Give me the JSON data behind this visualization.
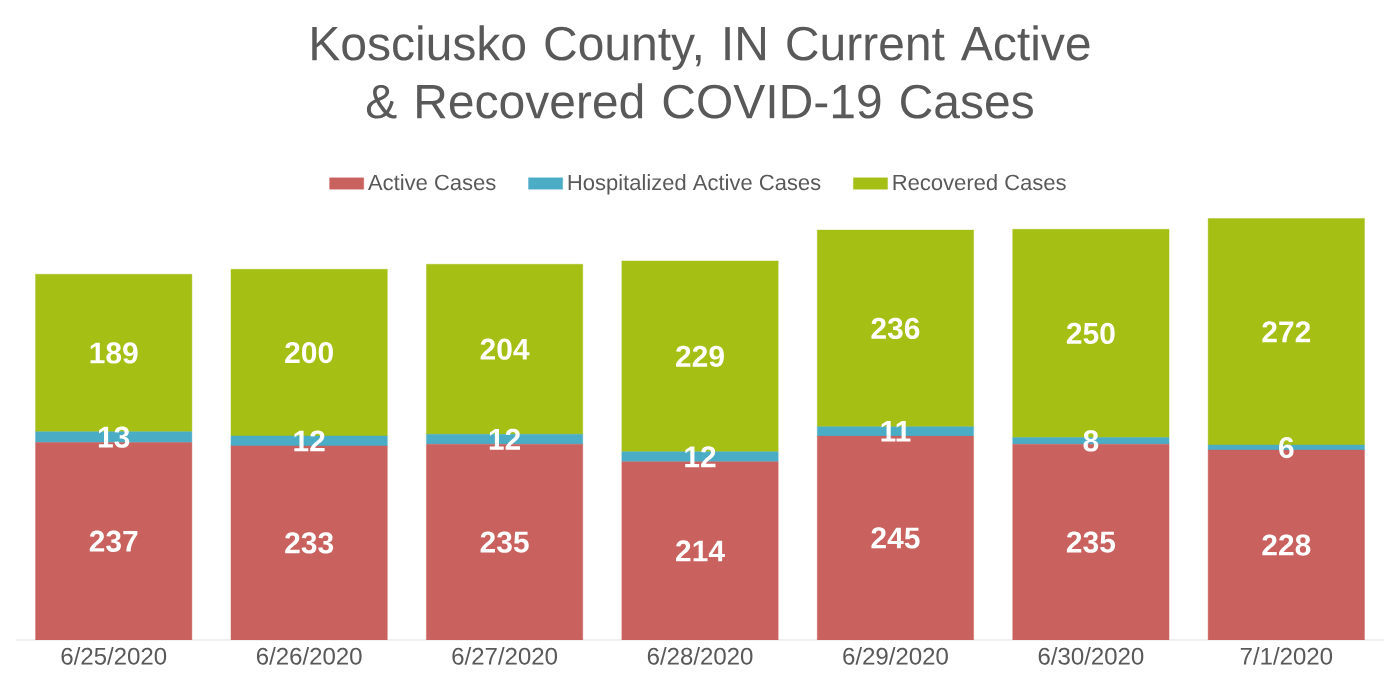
{
  "chart_data": {
    "type": "bar",
    "stacked": true,
    "title": "Kosciusko County, IN Current Active & Recovered COVID-19 Cases",
    "categories": [
      "6/25/2020",
      "6/26/2020",
      "6/27/2020",
      "6/28/2020",
      "6/29/2020",
      "6/30/2020",
      "7/1/2020"
    ],
    "series": [
      {
        "name": "Active Cases",
        "color": "#c9625f",
        "values": [
          237,
          233,
          235,
          214,
          245,
          235,
          228
        ]
      },
      {
        "name": "Hospitalized Active Cases",
        "color": "#4bacc6",
        "values": [
          13,
          12,
          12,
          12,
          11,
          8,
          6
        ]
      },
      {
        "name": "Recovered Cases",
        "color": "#a5bf14",
        "values": [
          189,
          200,
          204,
          229,
          236,
          250,
          272
        ]
      }
    ],
    "legend": "top",
    "data_labels": true
  }
}
